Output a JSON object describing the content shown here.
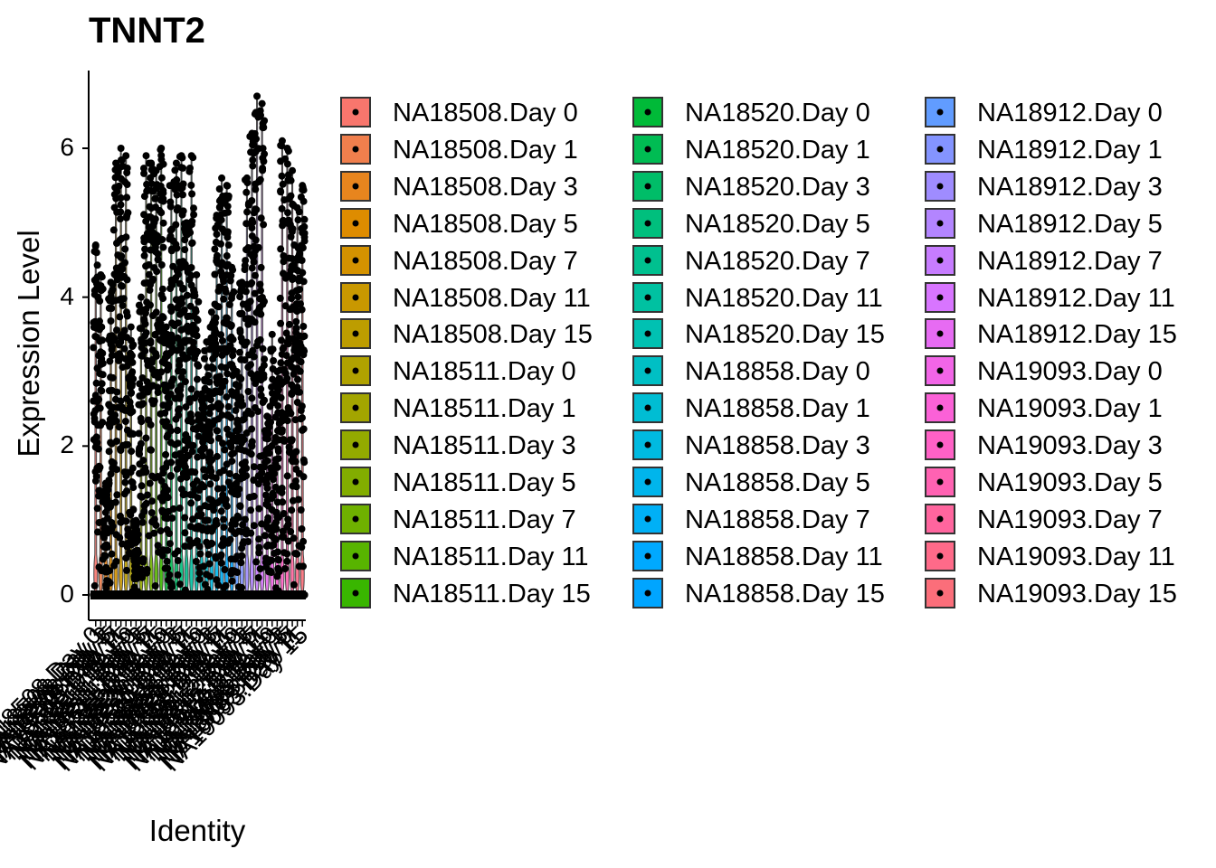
{
  "chart_data": {
    "type": "violin",
    "title": "TNNT2",
    "xlabel": "Identity",
    "ylabel": "Expression Level",
    "ylim": [
      0,
      7
    ],
    "yticks": [
      0,
      2,
      4,
      6
    ],
    "grid": false,
    "legend_position": "right",
    "categories": [
      "NA18508.Day 0",
      "NA18508.Day 1",
      "NA18508.Day 3",
      "NA18508.Day 5",
      "NA18508.Day 7",
      "NA18508.Day 11",
      "NA18508.Day 15",
      "NA18511.Day 0",
      "NA18511.Day 1",
      "NA18511.Day 3",
      "NA18511.Day 5",
      "NA18511.Day 7",
      "NA18511.Day 11",
      "NA18511.Day 15",
      "NA18520.Day 0",
      "NA18520.Day 1",
      "NA18520.Day 3",
      "NA18520.Day 5",
      "NA18520.Day 7",
      "NA18520.Day 11",
      "NA18520.Day 15",
      "NA18858.Day 0",
      "NA18858.Day 1",
      "NA18858.Day 3",
      "NA18858.Day 5",
      "NA18858.Day 7",
      "NA18858.Day 11",
      "NA18858.Day 15",
      "NA18912.Day 0",
      "NA18912.Day 1",
      "NA18912.Day 3",
      "NA18912.Day 5",
      "NA18912.Day 7",
      "NA18912.Day 11",
      "NA18912.Day 15",
      "NA19093.Day 0",
      "NA19093.Day 1",
      "NA19093.Day 3",
      "NA19093.Day 5",
      "NA19093.Day 7",
      "NA19093.Day 11",
      "NA19093.Day 15"
    ],
    "max_values": [
      4.7,
      4.3,
      1.5,
      4.2,
      5.8,
      6.0,
      5.9,
      3.6,
      1.0,
      4.0,
      5.9,
      5.8,
      5.7,
      6.0,
      3.6,
      5.5,
      5.8,
      5.9,
      5.0,
      5.9,
      4.3,
      2.7,
      3.4,
      3.8,
      5.1,
      5.6,
      5.5,
      4.4,
      3.0,
      4.2,
      5.6,
      6.2,
      6.7,
      6.6,
      2.4,
      3.5,
      3.0,
      6.1,
      6.0,
      5.7,
      5.2,
      5.5
    ],
    "colors": [
      "#F8766D",
      "#F07F4D",
      "#E7851E",
      "#DE8C00",
      "#D49200",
      "#C99800",
      "#BD9D00",
      "#B0A200",
      "#A3A500",
      "#93AA00",
      "#82AD00",
      "#6FB100",
      "#58B400",
      "#39B600",
      "#00BA38",
      "#00BC53",
      "#00BD68",
      "#00BF7D",
      "#00C08F",
      "#00C1A1",
      "#00C1B2",
      "#00BFC4",
      "#00BDD3",
      "#00BAE0",
      "#00B5EC",
      "#00B0F6",
      "#00A9FF",
      "#00A5FF",
      "#619CFF",
      "#8494FF",
      "#9F8CFF",
      "#B385FF",
      "#C77CFF",
      "#D875FF",
      "#E76BF3",
      "#F265E7",
      "#FB61D7",
      "#FF61C6",
      "#FF62B2",
      "#FF659E",
      "#FF6A89",
      "#FB6E7A"
    ]
  }
}
